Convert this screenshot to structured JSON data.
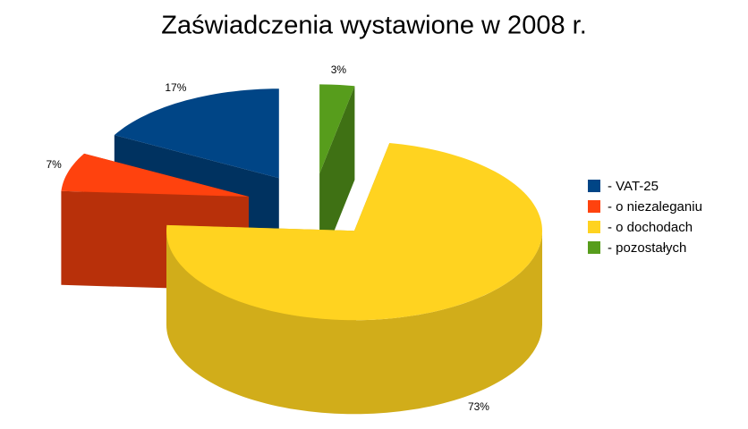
{
  "chart_data": {
    "type": "pie3d",
    "title": "Zaświadczenia wystawione w 2008 r.",
    "categories": [
      "- VAT-25",
      "- o niezaleganiu",
      "- o dochodach",
      "- pozostałych"
    ],
    "values": [
      17,
      7,
      73,
      3
    ],
    "value_labels": [
      "17%",
      "7%",
      "73%",
      "3%"
    ],
    "colors": [
      "#004586",
      "#ff420e",
      "#ffd320",
      "#579d1c"
    ],
    "legend": "right"
  }
}
